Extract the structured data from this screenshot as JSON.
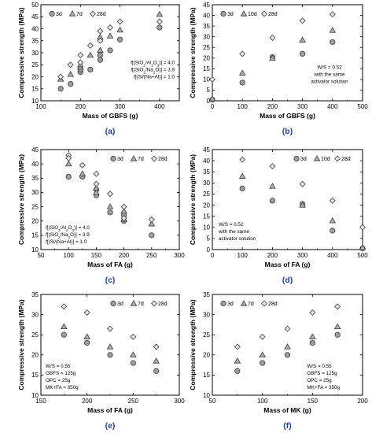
{
  "chart_data": [
    {
      "type": "scatter",
      "panel_label": "(a)",
      "xlabel": "Mass of GBFS (g)",
      "ylabel": "Compressive strength (MPa)",
      "xlim": [
        100,
        450
      ],
      "ylim": [
        10,
        50
      ],
      "xticks": [
        100,
        200,
        300,
        400
      ],
      "yticks": [
        10,
        15,
        20,
        25,
        30,
        35,
        40,
        45,
        50
      ],
      "legend_position": "top-left",
      "annotations": [
        "f[(SiO2/Al2O3)] = 4.0",
        "f[(SiO2/Na2O)] = 3.9",
        "f[(Si/(Na+Al)] = 1.0"
      ],
      "annotation_position": "right-middle",
      "series": [
        {
          "name": "3d",
          "marker": "circle",
          "x": [
            150,
            175,
            200,
            200,
            225,
            250,
            250,
            275,
            300,
            400
          ],
          "y": [
            15,
            17,
            22,
            23,
            23,
            27,
            29,
            31,
            35.5,
            40.5
          ]
        },
        {
          "name": "7d",
          "marker": "triangle",
          "x": [
            150,
            175,
            200,
            200,
            225,
            250,
            250,
            275,
            300,
            400
          ],
          "y": [
            19,
            21,
            24,
            25,
            29,
            31,
            36.5,
            37,
            39.5,
            46
          ]
        },
        {
          "name": "28d",
          "marker": "diamond",
          "x": [
            150,
            175,
            200,
            200,
            225,
            250,
            250,
            275,
            300,
            400
          ],
          "y": [
            20,
            25,
            26,
            29,
            33,
            35,
            39,
            40.5,
            43,
            43
          ]
        }
      ]
    },
    {
      "type": "scatter",
      "panel_label": "(b)",
      "xlabel": "Mass of GBFS (g)",
      "ylabel": "Compressive strength (MPa)",
      "xlim": [
        0,
        500
      ],
      "ylim": [
        0,
        45
      ],
      "xticks": [
        0,
        100,
        200,
        300,
        400,
        500
      ],
      "yticks": [
        0,
        5,
        10,
        15,
        20,
        25,
        30,
        35,
        40,
        45
      ],
      "legend_position": "top-left",
      "annotations": [
        "W/S = 0.52",
        "with the same",
        "activator solution"
      ],
      "annotation_position": "right-middle",
      "series": [
        {
          "name": "3d",
          "marker": "circle",
          "x": [
            0,
            100,
            200,
            300,
            400
          ],
          "y": [
            0.5,
            8.5,
            20.5,
            22,
            27.5
          ]
        },
        {
          "name": "10d",
          "marker": "triangle",
          "x": [
            0,
            100,
            200,
            300,
            400
          ],
          "y": [
            1,
            13,
            20,
            28.5,
            33
          ]
        },
        {
          "name": "28d",
          "marker": "diamond",
          "x": [
            0,
            100,
            200,
            300,
            400
          ],
          "y": [
            10,
            22,
            29.5,
            37.5,
            40.5
          ]
        }
      ]
    },
    {
      "type": "scatter",
      "panel_label": "(c)",
      "xlabel": "Mass of FA (g)",
      "ylabel": "Compressive strength (MPa)",
      "xlim": [
        50,
        300
      ],
      "ylim": [
        10,
        45
      ],
      "xticks": [
        50,
        100,
        150,
        200,
        250,
        300
      ],
      "yticks": [
        10,
        15,
        20,
        25,
        30,
        35,
        40,
        45
      ],
      "legend_position": "top-right",
      "annotations": [
        "f[(SiO2/Al2O3)] = 4.0",
        "f[(SiO2/Na2O)] = 3.9",
        "f[(Si/(Na+Al)] = 1.0"
      ],
      "annotation_position": "bottom-left",
      "series": [
        {
          "name": "3d",
          "marker": "circle",
          "x": [
            100,
            125,
            150,
            150,
            175,
            200,
            200,
            250
          ],
          "y": [
            35.5,
            35.5,
            29,
            31,
            23,
            20,
            22,
            15
          ]
        },
        {
          "name": "7d",
          "marker": "triangle",
          "x": [
            100,
            125,
            150,
            150,
            175,
            200,
            200,
            250
          ],
          "y": [
            40,
            36.5,
            30,
            31.5,
            25,
            20.5,
            23.5,
            19
          ]
        },
        {
          "name": "28d",
          "marker": "diamond",
          "x": [
            100,
            100,
            125,
            150,
            150,
            175,
            200,
            200,
            250
          ],
          "y": [
            43,
            42,
            39.5,
            33,
            36.5,
            29.5,
            25,
            21,
            20.5
          ]
        }
      ]
    },
    {
      "type": "scatter",
      "panel_label": "(d)",
      "xlabel": "Mass of FA (g)",
      "ylabel": "Compressive strength (MPa)",
      "xlim": [
        0,
        500
      ],
      "ylim": [
        0,
        45
      ],
      "xticks": [
        0,
        100,
        200,
        300,
        400,
        500
      ],
      "yticks": [
        0,
        5,
        10,
        15,
        20,
        25,
        30,
        35,
        40,
        45
      ],
      "legend_position": "top-right",
      "annotations": [
        "W/S = 0.52",
        "with the same",
        "activator solution"
      ],
      "annotation_position": "bottom-left",
      "series": [
        {
          "name": "3d",
          "marker": "circle",
          "x": [
            100,
            200,
            300,
            400,
            500
          ],
          "y": [
            27.5,
            22,
            20.5,
            8.5,
            0.5
          ]
        },
        {
          "name": "10d",
          "marker": "triangle",
          "x": [
            100,
            200,
            300,
            400,
            500
          ],
          "y": [
            33,
            28.5,
            20,
            13,
            1
          ]
        },
        {
          "name": "28d",
          "marker": "diamond",
          "x": [
            100,
            200,
            300,
            400,
            500
          ],
          "y": [
            40.5,
            37.5,
            29.5,
            22,
            10
          ]
        }
      ]
    },
    {
      "type": "scatter",
      "panel_label": "(e)",
      "xlabel": "Mass of FA (g)",
      "ylabel": "Compressive strength (MPa)",
      "xlim": [
        150,
        300
      ],
      "ylim": [
        10,
        35
      ],
      "xticks": [
        150,
        200,
        250,
        300
      ],
      "yticks": [
        10,
        15,
        20,
        25,
        30,
        35
      ],
      "legend_position": "top-right",
      "annotations": [
        "W/S = 0.55",
        "GBFS = 125g",
        "OPC = 25g",
        "MK+FA = 350g"
      ],
      "annotation_position": "bottom-left",
      "series": [
        {
          "name": "3d",
          "marker": "circle",
          "x": [
            175,
            200,
            225,
            250,
            275
          ],
          "y": [
            25,
            23,
            20,
            18,
            16
          ]
        },
        {
          "name": "7d",
          "marker": "triangle",
          "x": [
            175,
            200,
            225,
            250,
            275
          ],
          "y": [
            27,
            24.5,
            22,
            20,
            18.5
          ]
        },
        {
          "name": "28d",
          "marker": "diamond",
          "x": [
            175,
            200,
            225,
            250,
            275
          ],
          "y": [
            32,
            30.5,
            26.5,
            24.5,
            22
          ]
        }
      ]
    },
    {
      "type": "scatter",
      "panel_label": "(f)",
      "xlabel": "Mass of MK (g)",
      "ylabel": "Compressive strength (MPa)",
      "xlim": [
        50,
        200
      ],
      "ylim": [
        10,
        35
      ],
      "xticks": [
        50,
        100,
        150,
        200
      ],
      "yticks": [
        10,
        15,
        20,
        25,
        30,
        35
      ],
      "legend_position": "top-left",
      "annotations": [
        "W/S = 0.55",
        "GBFS = 125g",
        "OPC = 25g",
        "MK+FA = 350g"
      ],
      "annotation_position": "bottom-right",
      "series": [
        {
          "name": "3d",
          "marker": "circle",
          "x": [
            75,
            100,
            125,
            150,
            175
          ],
          "y": [
            16,
            18,
            20,
            23,
            25
          ]
        },
        {
          "name": "7d",
          "marker": "triangle",
          "x": [
            75,
            100,
            125,
            150,
            175
          ],
          "y": [
            18.5,
            20,
            22,
            24.5,
            27
          ]
        },
        {
          "name": "28d",
          "marker": "diamond",
          "x": [
            75,
            100,
            125,
            150,
            175
          ],
          "y": [
            22,
            24.5,
            26.5,
            30.5,
            32
          ]
        }
      ]
    }
  ]
}
